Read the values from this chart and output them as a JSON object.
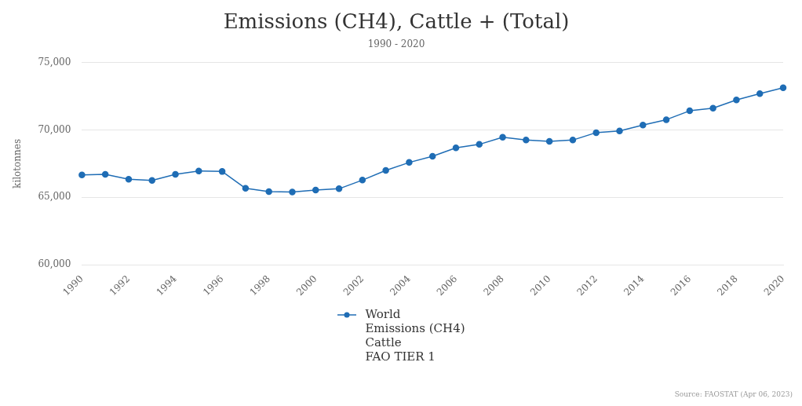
{
  "chart_data": {
    "type": "line",
    "title": "Emissions (CH4), Cattle + (Total)",
    "subtitle": "1990 - 2020",
    "ylabel": "kilotonnes",
    "x": [
      1990,
      1991,
      1992,
      1993,
      1994,
      1995,
      1996,
      1997,
      1998,
      1999,
      2000,
      2001,
      2002,
      2003,
      2004,
      2005,
      2006,
      2007,
      2008,
      2009,
      2010,
      2011,
      2012,
      2013,
      2014,
      2015,
      2016,
      2017,
      2018,
      2019,
      2020
    ],
    "series": [
      {
        "name": "World\nEmissions (CH4)\nCattle\nFAO TIER 1",
        "color": "#1f6db5",
        "values": [
          66660,
          66710,
          66340,
          66260,
          66710,
          66950,
          66920,
          65670,
          65430,
          65400,
          65540,
          65640,
          66280,
          67000,
          67590,
          68050,
          68670,
          68930,
          69460,
          69250,
          69150,
          69250,
          69800,
          69930,
          70360,
          70760,
          71420,
          71610,
          72230,
          72690,
          73130
        ]
      }
    ],
    "xlim": [
      1990,
      2020
    ],
    "xticks": [
      1990,
      1992,
      1994,
      1996,
      1998,
      2000,
      2002,
      2004,
      2006,
      2008,
      2010,
      2012,
      2014,
      2016,
      2018,
      2020
    ],
    "ylim": [
      60000,
      75000
    ],
    "yticks": [
      {
        "value": 60000,
        "label": "60,000"
      },
      {
        "value": 65000,
        "label": "65,000"
      },
      {
        "value": 70000,
        "label": "70,000"
      },
      {
        "value": 75000,
        "label": "75,000"
      }
    ],
    "grid": "y",
    "legend": "bottom",
    "marker": "circle",
    "line_style": "solid",
    "annotations": [
      "Source: FAOSTAT (Apr 06, 2023)"
    ]
  }
}
